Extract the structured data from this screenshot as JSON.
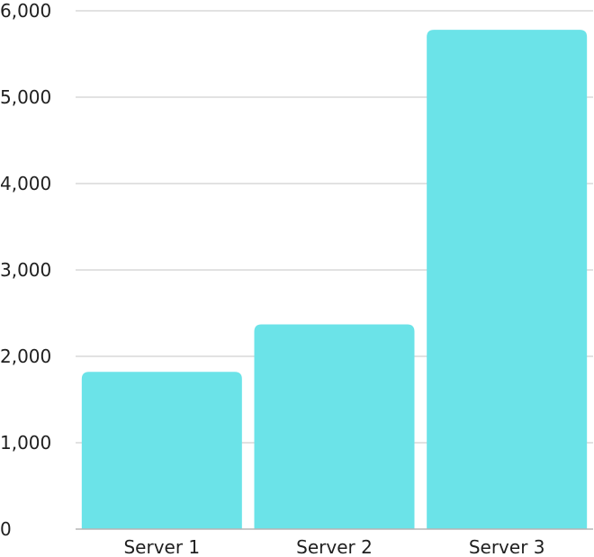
{
  "chart_data": {
    "type": "bar",
    "title": "",
    "xlabel": "",
    "ylabel": "",
    "categories": [
      "Server 1",
      "Server 2",
      "Server 3"
    ],
    "values": [
      1820,
      2370,
      5780
    ],
    "ylim": [
      0,
      6000
    ],
    "yticks": [
      0,
      1000,
      2000,
      3000,
      4000,
      5000,
      6000
    ],
    "ytick_labels": [
      "0",
      "1,000",
      "2,000",
      "3,000",
      "4,000",
      "5,000",
      "6,000"
    ],
    "grid": true,
    "bar_color": "#6be3e8"
  }
}
